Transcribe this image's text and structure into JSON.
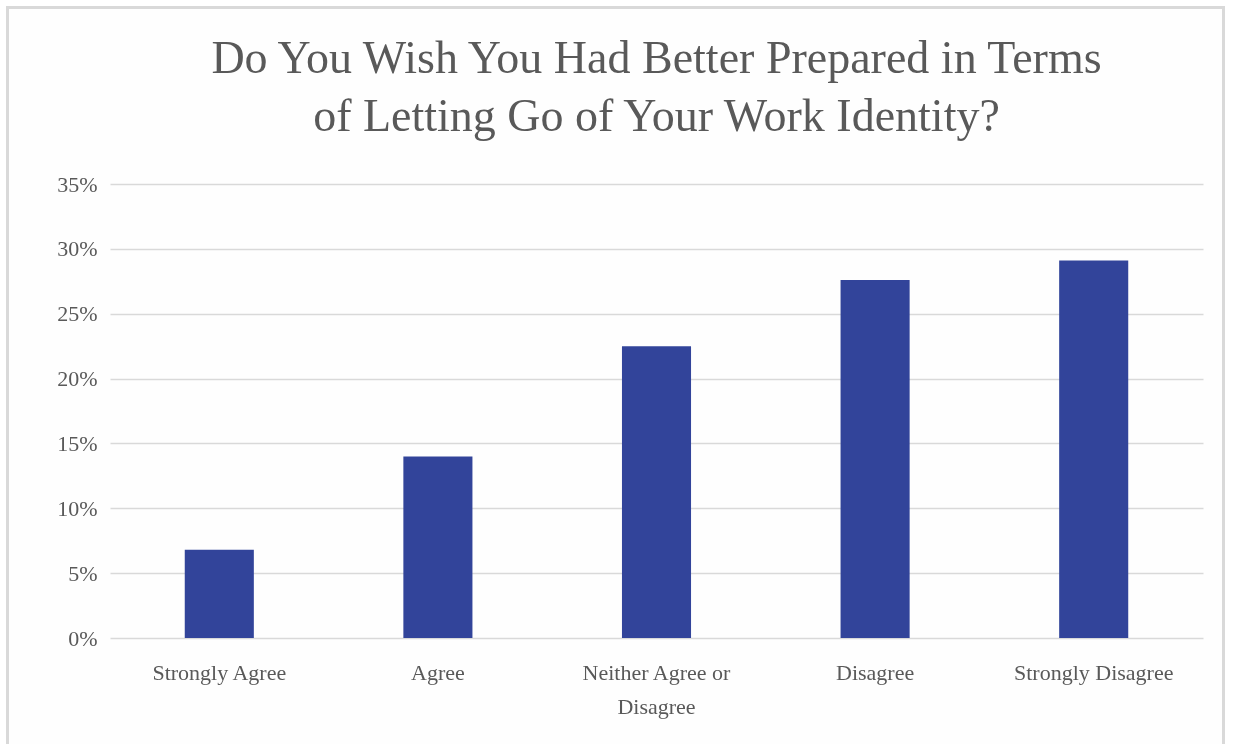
{
  "chart_data": {
    "type": "bar",
    "title": "Do You Wish You Had Better Prepared in Terms of Letting Go of Your Work Identity?",
    "categories": [
      "Strongly Agree",
      "Agree",
      "Neither Agree or Disagree",
      "Disagree",
      "Strongly Disagree"
    ],
    "values": [
      6.8,
      14.0,
      22.5,
      27.6,
      29.1
    ],
    "color": "#32449a",
    "ylim": [
      0,
      35
    ],
    "yticks": [
      {
        "value": 0,
        "label": "0%"
      },
      {
        "value": 5,
        "label": "5%"
      },
      {
        "value": 10,
        "label": "10%"
      },
      {
        "value": 15,
        "label": "15%"
      },
      {
        "value": 20,
        "label": "20%"
      },
      {
        "value": 25,
        "label": "25%"
      },
      {
        "value": 30,
        "label": "30%"
      },
      {
        "value": 35,
        "label": "35%"
      }
    ],
    "grid": "y"
  }
}
